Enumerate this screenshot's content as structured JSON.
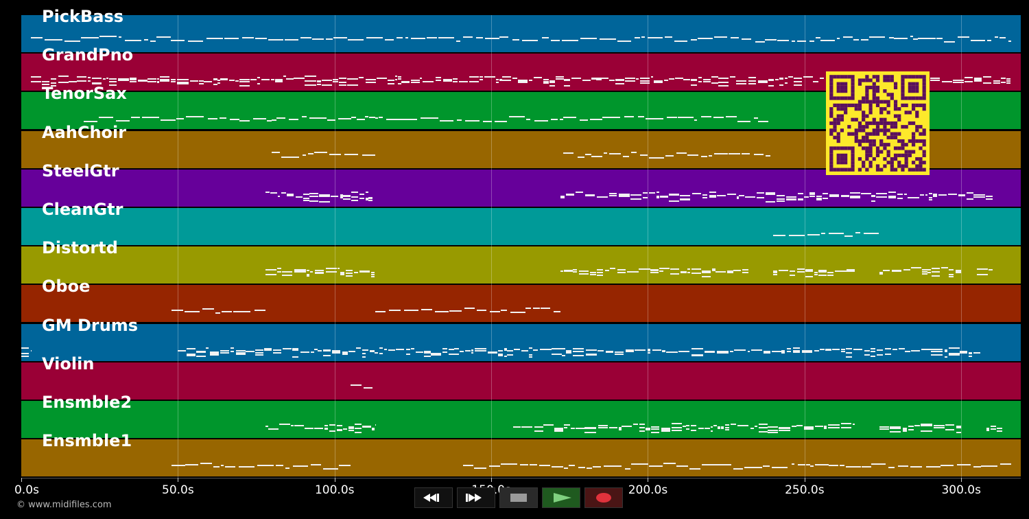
{
  "app": {
    "copyright": "© www.midifiles.com"
  },
  "colors": {
    "background": "#000000",
    "note": "#f2f2f2",
    "qr_fg": "#5a0f5e",
    "qr_bg": "#fde92b"
  },
  "timeline": {
    "max_seconds": 319,
    "tick_labels": [
      "0.0s",
      "50.0s",
      "100.0s",
      "150.0s",
      "200.0s",
      "250.0s",
      "300.0s"
    ],
    "tick_values": [
      0,
      50,
      100,
      150,
      200,
      250,
      300
    ]
  },
  "tracks": [
    {
      "name": "PickBass",
      "color": "#00659a",
      "segments": [
        [
          3,
          316
        ]
      ],
      "density": "sparse"
    },
    {
      "name": "GrandPno",
      "color": "#9a0036",
      "segments": [
        [
          3,
          316
        ]
      ],
      "density": "dense"
    },
    {
      "name": "TenorSax",
      "color": "#00962c",
      "segments": [
        [
          20,
          80
        ],
        [
          80,
          113
        ],
        [
          113,
          173
        ],
        [
          173,
          239
        ]
      ],
      "density": "sparse"
    },
    {
      "name": "AahChoir",
      "color": "#986600",
      "segments": [
        [
          80,
          113
        ],
        [
          173,
          239
        ]
      ],
      "density": "sparse"
    },
    {
      "name": "SteelGtr",
      "color": "#66009a",
      "segments": [
        [
          78,
          112
        ],
        [
          172,
          310
        ]
      ],
      "density": "dense"
    },
    {
      "name": "CleanGtr",
      "color": "#009a98",
      "segments": [
        [
          240,
          274
        ]
      ],
      "density": "sparse"
    },
    {
      "name": "Distortd",
      "color": "#989a00",
      "segments": [
        [
          78,
          113
        ],
        [
          172,
          232
        ],
        [
          240,
          266
        ],
        [
          274,
          300
        ],
        [
          305,
          310
        ]
      ],
      "density": "dense"
    },
    {
      "name": "Oboe",
      "color": "#962500",
      "segments": [
        [
          48,
          78
        ],
        [
          113,
          172
        ]
      ],
      "density": "sparse"
    },
    {
      "name": "GM Drums",
      "color": "#00659a",
      "segments": [
        [
          0,
          3
        ],
        [
          50,
          110
        ],
        [
          110,
          306
        ]
      ],
      "density": "dense"
    },
    {
      "name": "Violin",
      "color": "#9a0036",
      "segments": [
        [
          105,
          112
        ]
      ],
      "density": "sparse"
    },
    {
      "name": "Ensmble2",
      "color": "#00962c",
      "segments": [
        [
          78,
          113
        ],
        [
          157,
          266
        ],
        [
          274,
          300
        ],
        [
          308,
          313
        ]
      ],
      "density": "dense"
    },
    {
      "name": "Ensmble1",
      "color": "#986600",
      "segments": [
        [
          48,
          105
        ],
        [
          141,
          316
        ]
      ],
      "density": "sparse"
    }
  ],
  "transport": {
    "rewind_icon": "rewind-icon",
    "fast_forward_icon": "fast-forward-icon",
    "stop_icon": "stop-icon",
    "play_icon": "play-icon",
    "record_icon": "record-icon"
  }
}
